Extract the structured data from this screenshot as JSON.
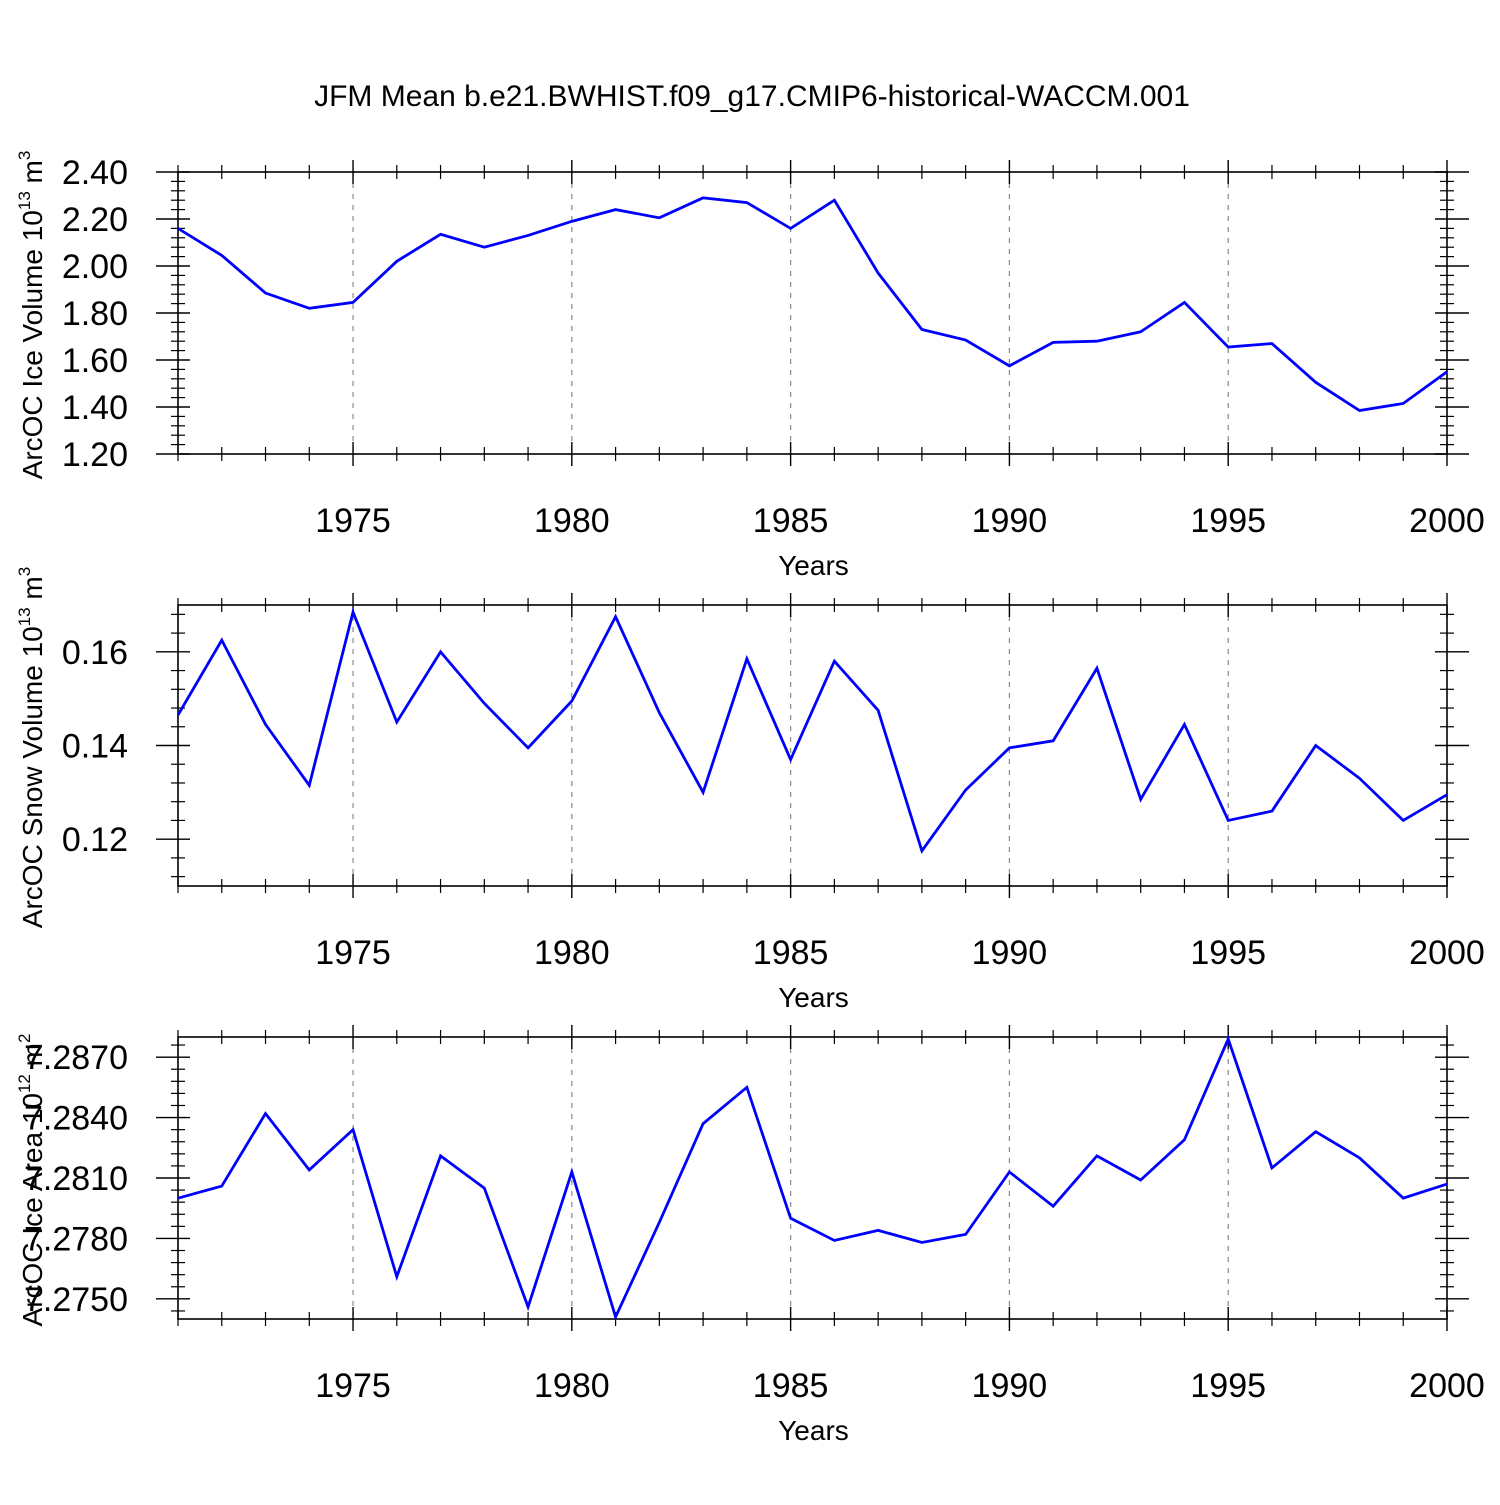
{
  "figure_title": "JFM Mean b.e21.BWHIST.f09_g17.CMIP6-historical-WACCM.001",
  "series_color": "#0000ff",
  "chart_data": [
    {
      "type": "line",
      "title": "",
      "xlabel": "Years",
      "ylabel": "ArcOC Ice Volume 10",
      "ylabel_exp": "13",
      "ylabel_unit": " m",
      "ylabel_unit_exp": "3",
      "xlim": [
        1971,
        2000
      ],
      "ylim": [
        1.2,
        2.4
      ],
      "xticks": [
        1975,
        1980,
        1985,
        1990,
        1995,
        2000
      ],
      "xtick_labels": [
        "1975",
        "1980",
        "1985",
        "1990",
        "1995",
        "2000"
      ],
      "yticks": [
        1.2,
        1.4,
        1.6,
        1.8,
        2.0,
        2.2,
        2.4
      ],
      "ytick_labels": [
        "1.20",
        "1.40",
        "1.60",
        "1.80",
        "2.00",
        "2.20",
        "2.40"
      ],
      "grid": "vertical dashed at major x ticks",
      "x": [
        1971,
        1972,
        1973,
        1974,
        1975,
        1976,
        1977,
        1978,
        1979,
        1980,
        1981,
        1982,
        1983,
        1984,
        1985,
        1986,
        1987,
        1988,
        1989,
        1990,
        1991,
        1992,
        1993,
        1994,
        1995,
        1996,
        1997,
        1998,
        1999,
        2000
      ],
      "series": [
        {
          "name": "ArcOC Ice Volume",
          "values": [
            2.16,
            2.045,
            1.885,
            1.82,
            1.845,
            2.02,
            2.135,
            2.08,
            2.13,
            2.19,
            2.24,
            2.205,
            2.29,
            2.27,
            2.16,
            2.28,
            1.97,
            1.73,
            1.685,
            1.575,
            1.675,
            1.68,
            1.72,
            1.845,
            1.655,
            1.67,
            1.505,
            1.385,
            1.415,
            1.55
          ]
        }
      ]
    },
    {
      "type": "line",
      "title": "",
      "xlabel": "Years",
      "ylabel": "ArcOC Snow Volume 10",
      "ylabel_exp": "13",
      "ylabel_unit": " m",
      "ylabel_unit_exp": "3",
      "xlim": [
        1971,
        2000
      ],
      "ylim": [
        0.11,
        0.17
      ],
      "xticks": [
        1975,
        1980,
        1985,
        1990,
        1995,
        2000
      ],
      "xtick_labels": [
        "1975",
        "1980",
        "1985",
        "1990",
        "1995",
        "2000"
      ],
      "yticks": [
        0.12,
        0.14,
        0.16
      ],
      "ytick_labels": [
        "0.12",
        "0.14",
        "0.16"
      ],
      "grid": "vertical dashed at major x ticks",
      "x": [
        1971,
        1972,
        1973,
        1974,
        1975,
        1976,
        1977,
        1978,
        1979,
        1980,
        1981,
        1982,
        1983,
        1984,
        1985,
        1986,
        1987,
        1988,
        1989,
        1990,
        1991,
        1992,
        1993,
        1994,
        1995,
        1996,
        1997,
        1998,
        1999,
        2000
      ],
      "series": [
        {
          "name": "ArcOC Snow Volume",
          "values": [
            0.1465,
            0.1625,
            0.1445,
            0.1315,
            0.1685,
            0.145,
            0.16,
            0.149,
            0.1395,
            0.1495,
            0.1675,
            0.147,
            0.13,
            0.1585,
            0.137,
            0.158,
            0.1475,
            0.1175,
            0.1305,
            0.1395,
            0.141,
            0.1565,
            0.1285,
            0.1445,
            0.124,
            0.126,
            0.14,
            0.133,
            0.124,
            0.1295
          ]
        }
      ]
    },
    {
      "type": "line",
      "title": "",
      "xlabel": "Years",
      "ylabel": "ArcOC Ice Area 10",
      "ylabel_exp": "12",
      "ylabel_unit": " m",
      "ylabel_unit_exp": "2",
      "xlim": [
        1971,
        2000
      ],
      "ylim": [
        7.274,
        7.288
      ],
      "xticks": [
        1975,
        1980,
        1985,
        1990,
        1995,
        2000
      ],
      "xtick_labels": [
        "1975",
        "1980",
        "1985",
        "1990",
        "1995",
        "2000"
      ],
      "yticks": [
        7.275,
        7.278,
        7.281,
        7.284,
        7.287
      ],
      "ytick_labels": [
        "7.2750",
        "7.2780",
        "7.2810",
        "7.2840",
        "7.2870"
      ],
      "grid": "vertical dashed at major x ticks",
      "x": [
        1971,
        1972,
        1973,
        1974,
        1975,
        1976,
        1977,
        1978,
        1979,
        1980,
        1981,
        1982,
        1983,
        1984,
        1985,
        1986,
        1987,
        1988,
        1989,
        1990,
        1991,
        1992,
        1993,
        1994,
        1995,
        1996,
        1997,
        1998,
        1999,
        2000
      ],
      "series": [
        {
          "name": "ArcOC Ice Area",
          "values": [
            7.28,
            7.2806,
            7.2842,
            7.2814,
            7.2834,
            7.2761,
            7.2821,
            7.2805,
            7.2746,
            7.2813,
            7.2741,
            7.2788,
            7.2837,
            7.2855,
            7.279,
            7.2779,
            7.2784,
            7.2778,
            7.2782,
            7.2813,
            7.2796,
            7.2821,
            7.2809,
            7.2829,
            7.2879,
            7.2815,
            7.2833,
            7.282,
            7.28,
            7.2807
          ]
        }
      ]
    }
  ]
}
